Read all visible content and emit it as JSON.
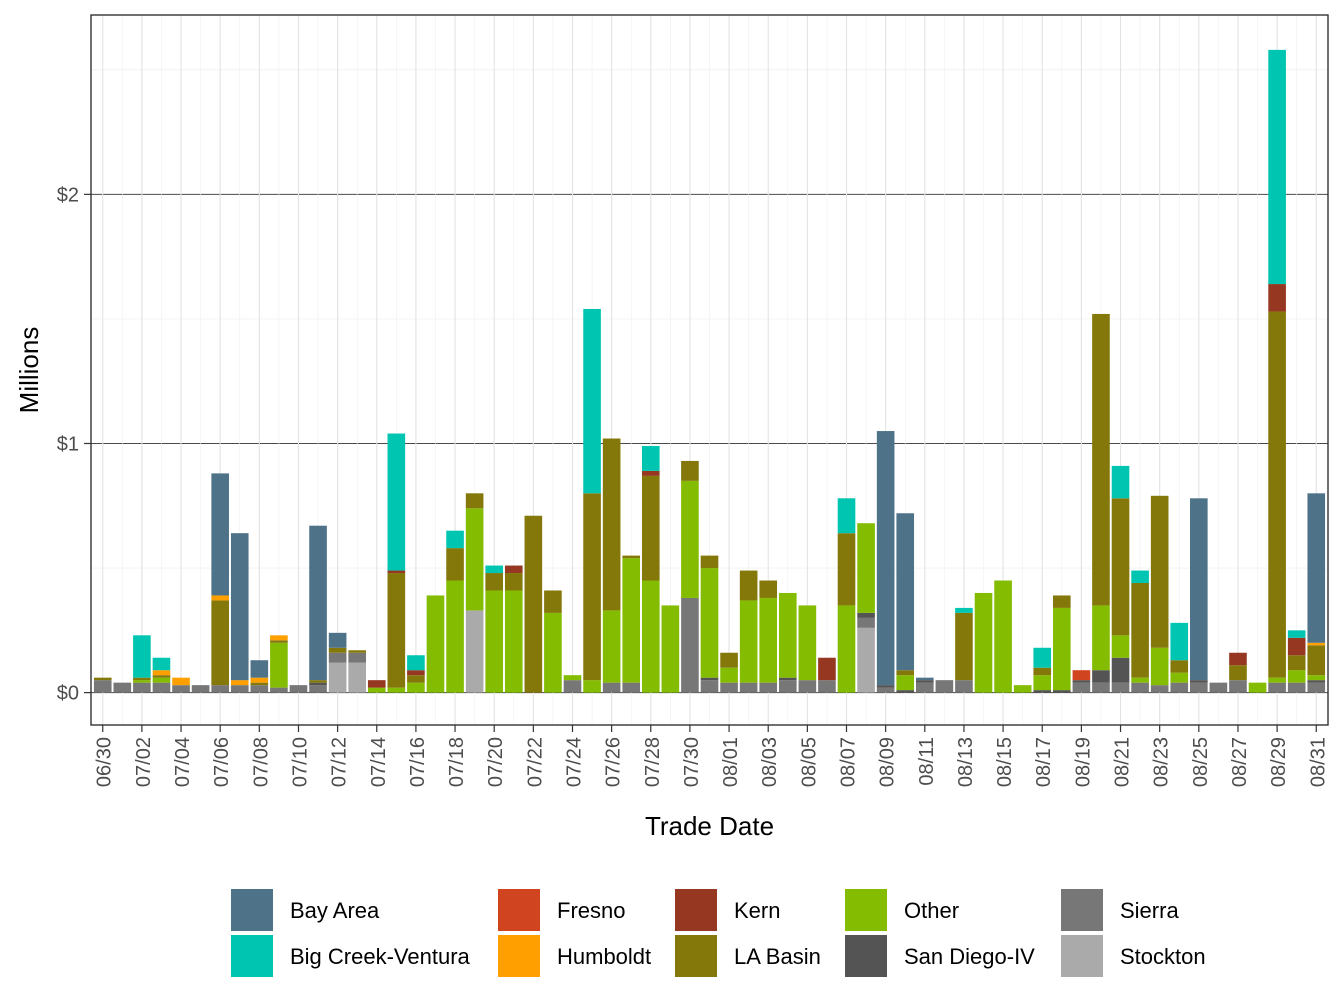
{
  "chart_data": {
    "type": "bar",
    "stacked": true,
    "xlabel": "Trade Date",
    "ylabel": "Millions",
    "ylim": [
      -0.13,
      2.72
    ],
    "y_ticks": [
      0,
      1,
      2
    ],
    "y_tick_labels": [
      "$0",
      "$1",
      "$2"
    ],
    "grid": true,
    "legend_position": "bottom",
    "categories": [
      "06/30",
      "07/01",
      "07/02",
      "07/03",
      "07/04",
      "07/05",
      "07/06",
      "07/07",
      "07/08",
      "07/09",
      "07/10",
      "07/11",
      "07/12",
      "07/13",
      "07/14",
      "07/15",
      "07/16",
      "07/17",
      "07/18",
      "07/19",
      "07/20",
      "07/21",
      "07/22",
      "07/23",
      "07/24",
      "07/25",
      "07/26",
      "07/27",
      "07/28",
      "07/29",
      "07/30",
      "07/31",
      "08/01",
      "08/02",
      "08/03",
      "08/04",
      "08/05",
      "08/06",
      "08/07",
      "08/08",
      "08/09",
      "08/10",
      "08/11",
      "08/12",
      "08/13",
      "08/14",
      "08/15",
      "08/16",
      "08/17",
      "08/18",
      "08/19",
      "08/20",
      "08/21",
      "08/22",
      "08/23",
      "08/24",
      "08/25",
      "08/26",
      "08/27",
      "08/28",
      "08/29",
      "08/30",
      "08/31"
    ],
    "tick_labels": [
      "06/30",
      "07/02",
      "07/04",
      "07/06",
      "07/08",
      "07/10",
      "07/12",
      "07/14",
      "07/16",
      "07/18",
      "07/20",
      "07/22",
      "07/24",
      "07/26",
      "07/28",
      "07/30",
      "08/01",
      "08/03",
      "08/05",
      "08/07",
      "08/09",
      "08/11",
      "08/13",
      "08/15",
      "08/17",
      "08/19",
      "08/21",
      "08/23",
      "08/25",
      "08/27",
      "08/29",
      "08/31"
    ],
    "series": [
      {
        "name": "Bay Area",
        "color": "#4E7389",
        "values": [
          0,
          0,
          0,
          0,
          0,
          0,
          0.49,
          0.59,
          0.07,
          0,
          0,
          0.62,
          0.06,
          0,
          0,
          0,
          0,
          0,
          0,
          0,
          0,
          0,
          0,
          0,
          0,
          0,
          0,
          0,
          0,
          0,
          0,
          0,
          0,
          0,
          0,
          0,
          0,
          0,
          0,
          0,
          1.02,
          0.63,
          0.01,
          0,
          0,
          0,
          0,
          0,
          0,
          0,
          0,
          0,
          0,
          0,
          0,
          0,
          0.73,
          0,
          0,
          0,
          0,
          0,
          0.6
        ]
      },
      {
        "name": "Big Creek-Ventura",
        "color": "#00C5B1",
        "values": [
          0,
          0,
          0.17,
          0.05,
          0,
          0,
          0,
          0,
          0,
          0,
          0,
          0,
          0,
          0,
          0,
          0.55,
          0.06,
          0,
          0.07,
          0,
          0.03,
          0,
          0,
          0,
          0,
          0.74,
          0,
          0,
          0.1,
          0,
          0,
          0,
          0,
          0,
          0,
          0,
          0,
          0,
          0.14,
          0,
          0,
          0,
          0,
          0,
          0.02,
          0,
          0,
          0,
          0.08,
          0,
          0,
          0,
          0.13,
          0.05,
          0,
          0.15,
          0,
          0,
          0,
          0,
          0.94,
          0.03,
          0
        ]
      },
      {
        "name": "Fresno",
        "color": "#D04520",
        "values": [
          0,
          0,
          0,
          0,
          0,
          0,
          0,
          0,
          0,
          0,
          0,
          0,
          0,
          0,
          0,
          0,
          0,
          0,
          0,
          0,
          0,
          0,
          0,
          0,
          0,
          0,
          0,
          0,
          0,
          0,
          0,
          0,
          0,
          0,
          0,
          0,
          0,
          0,
          0,
          0,
          0,
          0,
          0,
          0,
          0,
          0,
          0,
          0,
          0,
          0,
          0.04,
          0,
          0,
          0,
          0,
          0,
          0,
          0,
          0,
          0,
          0,
          0,
          0
        ]
      },
      {
        "name": "Humboldt",
        "color": "#FFA000",
        "values": [
          0,
          0,
          0,
          0.02,
          0.03,
          0,
          0.02,
          0.02,
          0.02,
          0.02,
          0,
          0,
          0,
          0,
          0,
          0,
          0,
          0,
          0,
          0,
          0,
          0,
          0,
          0,
          0,
          0,
          0,
          0,
          0,
          0,
          0,
          0,
          0,
          0,
          0,
          0,
          0,
          0,
          0,
          0,
          0,
          0,
          0,
          0,
          0,
          0,
          0,
          0,
          0,
          0,
          0,
          0,
          0,
          0,
          0,
          0,
          0,
          0,
          0,
          0,
          0,
          0,
          0.01
        ]
      },
      {
        "name": "Kern",
        "color": "#963721",
        "values": [
          0,
          0,
          0,
          0,
          0,
          0,
          0,
          0,
          0,
          0,
          0,
          0,
          0,
          0,
          0.03,
          0.01,
          0.02,
          0,
          0,
          0,
          0,
          0.03,
          0,
          0,
          0,
          0,
          0,
          0,
          0.02,
          0,
          0,
          0,
          0,
          0,
          0,
          0,
          0,
          0.09,
          0,
          0,
          0,
          0,
          0,
          0,
          0,
          0,
          0,
          0,
          0,
          0,
          0,
          0,
          0,
          0,
          0,
          0,
          0,
          0,
          0.05,
          0,
          0.11,
          0.07,
          0
        ]
      },
      {
        "name": "LA Basin",
        "color": "#85780A",
        "values": [
          0.01,
          0,
          0.01,
          0.01,
          0,
          0,
          0.34,
          0,
          0.01,
          0.01,
          0,
          0.01,
          0.02,
          0.01,
          0,
          0.46,
          0.03,
          0,
          0.13,
          0.06,
          0.07,
          0.07,
          0.71,
          0.09,
          0,
          0.75,
          0.69,
          0.01,
          0.42,
          0,
          0.08,
          0.05,
          0.06,
          0.12,
          0.07,
          0,
          0,
          0,
          0.29,
          0,
          0,
          0.02,
          0,
          0,
          0.27,
          0,
          0,
          0,
          0.03,
          0.05,
          0,
          1.17,
          0.55,
          0.38,
          0.61,
          0.05,
          0,
          0,
          0.06,
          0,
          1.47,
          0.06,
          0.12
        ]
      },
      {
        "name": "Other",
        "color": "#83BC00",
        "values": [
          0,
          0,
          0.01,
          0.02,
          0,
          0,
          0,
          0,
          0,
          0.18,
          0,
          0,
          0,
          0,
          0.02,
          0.02,
          0.04,
          0.39,
          0.45,
          0.41,
          0.41,
          0.41,
          0,
          0.32,
          0.02,
          0.05,
          0.29,
          0.5,
          0.45,
          0.35,
          0.47,
          0.44,
          0.06,
          0.33,
          0.34,
          0.34,
          0.3,
          0,
          0.35,
          0.36,
          0,
          0.06,
          0,
          0,
          0,
          0.4,
          0.45,
          0.03,
          0.06,
          0.33,
          0,
          0.26,
          0.09,
          0.02,
          0.15,
          0.04,
          0,
          0,
          0,
          0.04,
          0.02,
          0.05,
          0.02
        ]
      },
      {
        "name": "San Diego-IV",
        "color": "#545454",
        "values": [
          0,
          0,
          0,
          0,
          0,
          0,
          0,
          0,
          0,
          0,
          0,
          0.01,
          0,
          0,
          0,
          0,
          0,
          0,
          0,
          0,
          0,
          0,
          0,
          0,
          0,
          0,
          0,
          0,
          0,
          0,
          0,
          0.01,
          0,
          0,
          0,
          0.01,
          0,
          0,
          0,
          0.02,
          0.01,
          0.01,
          0.01,
          0,
          0,
          0,
          0,
          0,
          0.01,
          0.01,
          0.01,
          0.05,
          0.1,
          0,
          0,
          0,
          0.01,
          0,
          0,
          0,
          0,
          0,
          0.01
        ]
      },
      {
        "name": "Sierra",
        "color": "#777777",
        "values": [
          0.05,
          0.04,
          0.04,
          0.04,
          0.03,
          0.03,
          0.03,
          0.03,
          0.03,
          0.02,
          0.03,
          0.03,
          0.04,
          0.04,
          0,
          0,
          0,
          0,
          0,
          0,
          0,
          0,
          0,
          0,
          0.05,
          0,
          0.04,
          0.04,
          0,
          0,
          0.38,
          0.05,
          0.04,
          0.04,
          0.04,
          0.05,
          0.05,
          0.05,
          0,
          0.04,
          0.02,
          0,
          0.04,
          0.05,
          0.05,
          0,
          0,
          0,
          0,
          0,
          0.04,
          0.04,
          0.04,
          0.04,
          0.03,
          0.04,
          0.04,
          0.04,
          0.05,
          0,
          0.04,
          0.04,
          0.04
        ]
      },
      {
        "name": "Stockton",
        "color": "#AAAAAA",
        "values": [
          0,
          0,
          0,
          0,
          0,
          0,
          0,
          0,
          0,
          0,
          0,
          0,
          0.12,
          0.12,
          0,
          0,
          0,
          0,
          0,
          0.33,
          0,
          0,
          0,
          0,
          0,
          0,
          0,
          0,
          0,
          0,
          0,
          0,
          0,
          0,
          0,
          0,
          0,
          0,
          0,
          0.26,
          0,
          0,
          0,
          0,
          0,
          0,
          0,
          0,
          0,
          0,
          0,
          0,
          0,
          0,
          0,
          0,
          0,
          0,
          0,
          0,
          0,
          0,
          0
        ]
      }
    ]
  }
}
